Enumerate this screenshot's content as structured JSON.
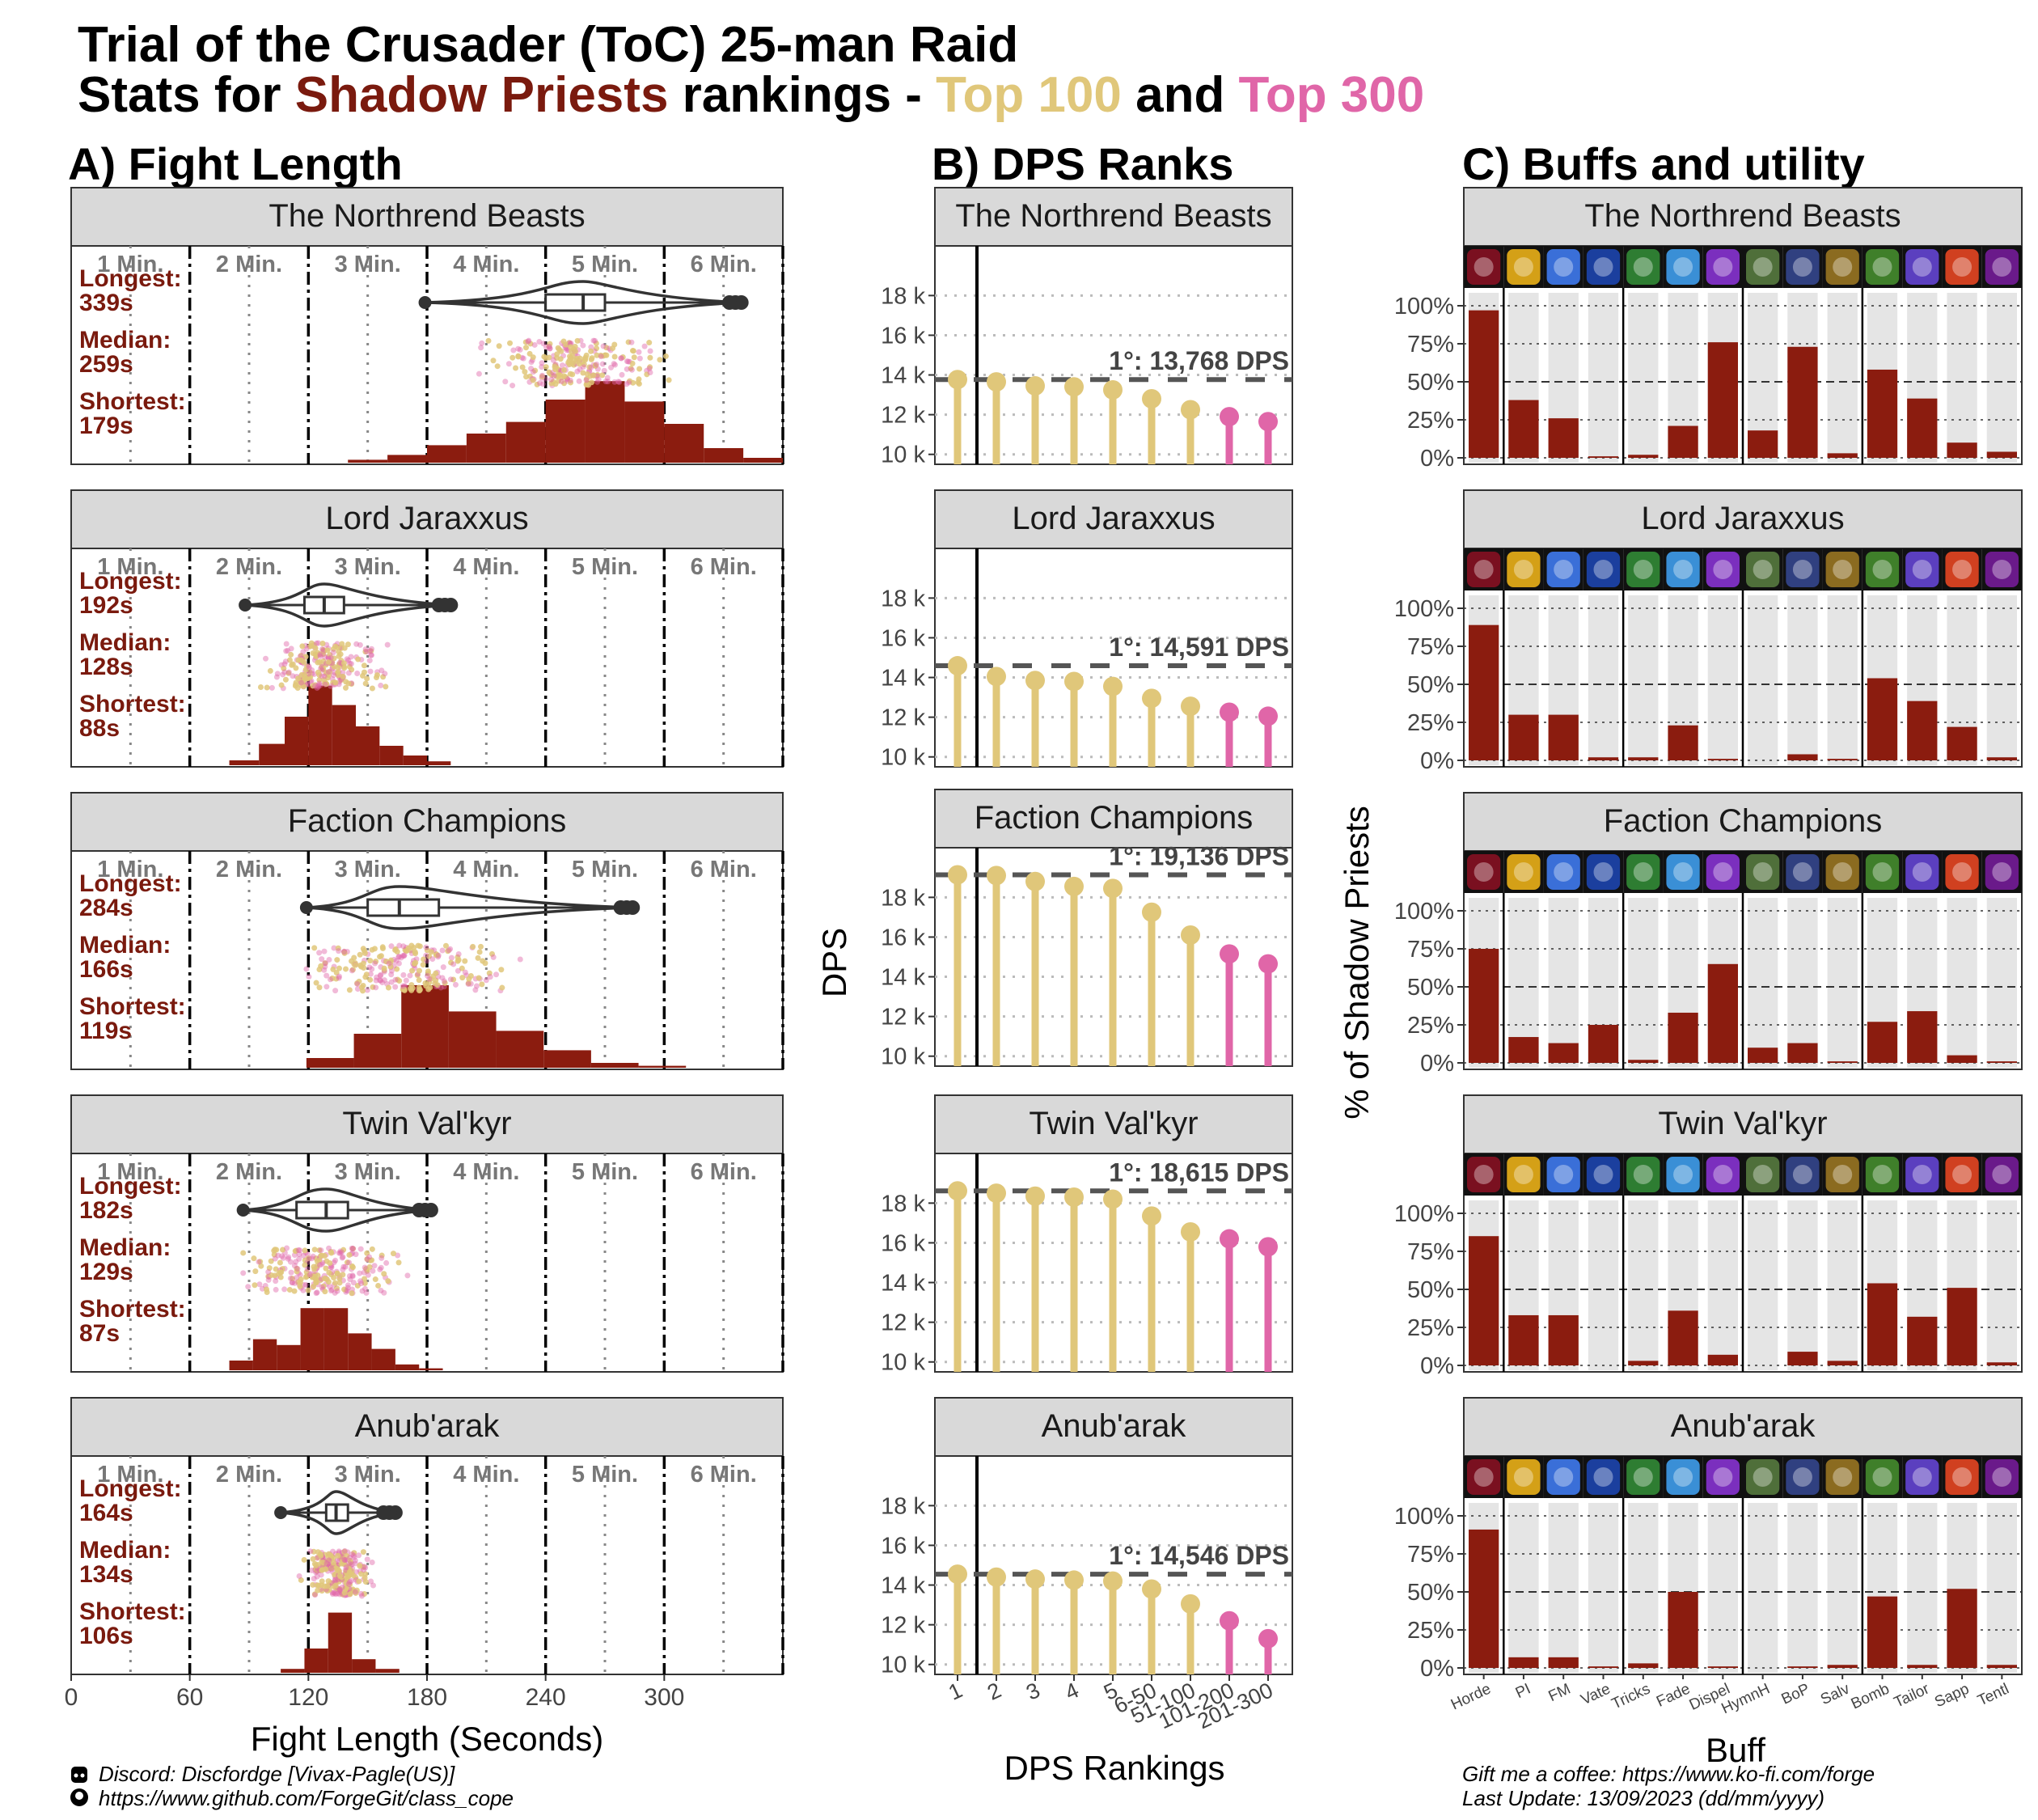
{
  "header": {
    "title": "Trial of the Crusader (ToC) 25-man Raid",
    "subtitle": {
      "part1": "Stats for ",
      "class": "Shadow Priests",
      "part2": " rankings - ",
      "top100": "Top 100",
      "and": " and ",
      "top300": "Top 300"
    }
  },
  "colors": {
    "dark_red": "#7a1a0e",
    "bar_red": "#8b1c0f",
    "top100": "#e0c77a",
    "top300": "#e066a8",
    "strip_bg": "#d9d9d9",
    "panel_bg_bar": "#e5e5e5"
  },
  "panel_titles": {
    "a": "A) Fight Length",
    "b": "B) DPS Ranks",
    "c": "C) Buffs and utility"
  },
  "fight_axis": {
    "minute_labels": [
      "1 Min.",
      "2 Min.",
      "3 Min.",
      "4 Min.",
      "5 Min.",
      "6 Min."
    ],
    "ticks": [
      "0",
      "60",
      "120",
      "180",
      "240",
      "300"
    ],
    "xlabel": "Fight Length (Seconds)",
    "longest_label": "Longest:",
    "median_label": "Median:",
    "shortest_label": "Shortest:"
  },
  "dps_axis": {
    "ylabel": "DPS",
    "xlabel": "DPS Rankings",
    "y_ticks": [
      "10 k",
      "12 k",
      "14 k",
      "16 k",
      "18 k"
    ],
    "rank_labels": [
      "1",
      "2",
      "3",
      "4",
      "5",
      "6-50",
      "51-100",
      "101-200",
      "201-300"
    ]
  },
  "buff_axis": {
    "ylabel": "% of Shadow Priests",
    "xlabel": "Buff",
    "y_ticks": [
      "0%",
      "25%",
      "50%",
      "75%",
      "100%"
    ],
    "buffs": [
      "Horde",
      "PI",
      "FM",
      "Vate",
      "Tricks",
      "Fade",
      "Dispel",
      "HymnH",
      "BoP",
      "Salv",
      "Bomb",
      "Tailor",
      "Sapp",
      "Tentl"
    ]
  },
  "footer": {
    "discord": "Discord: Discfordge [Vivax-Pagle(US)]",
    "github": "https://www.github.com/ForgeGit/class_cope",
    "coffee": "Gift me a coffee: https://www.ko-fi.com/forge",
    "update": "Last Update: 13/09/2023 (dd/mm/yyyy)"
  },
  "chart_data": [
    {
      "type": "box",
      "panel": "Fight Length",
      "unit": "seconds",
      "xlim": [
        0,
        360
      ],
      "bosses": [
        {
          "name": "The Northrend Beasts",
          "longest": "339s",
          "median": "259s",
          "shortest": "179s",
          "box": [
            179,
            240,
            259,
            270,
            339
          ],
          "hist": [
            {
              "x0": 140,
              "x1": 160,
              "h": 0.03
            },
            {
              "x0": 160,
              "x1": 180,
              "h": 0.08
            },
            {
              "x0": 180,
              "x1": 200,
              "h": 0.18
            },
            {
              "x0": 200,
              "x1": 220,
              "h": 0.3
            },
            {
              "x0": 220,
              "x1": 240,
              "h": 0.42
            },
            {
              "x0": 240,
              "x1": 260,
              "h": 0.65
            },
            {
              "x0": 260,
              "x1": 280,
              "h": 0.84
            },
            {
              "x0": 280,
              "x1": 300,
              "h": 0.63
            },
            {
              "x0": 300,
              "x1": 320,
              "h": 0.4
            },
            {
              "x0": 320,
              "x1": 340,
              "h": 0.15
            },
            {
              "x0": 340,
              "x1": 360,
              "h": 0.05
            }
          ]
        },
        {
          "name": "Lord Jaraxxus",
          "longest": "192s",
          "median": "128s",
          "shortest": "88s",
          "box": [
            88,
            118,
            128,
            138,
            192
          ],
          "hist": [
            {
              "x0": 80,
              "x1": 95,
              "h": 0.05
            },
            {
              "x0": 95,
              "x1": 108,
              "h": 0.22
            },
            {
              "x0": 108,
              "x1": 120,
              "h": 0.5
            },
            {
              "x0": 120,
              "x1": 132,
              "h": 0.82
            },
            {
              "x0": 132,
              "x1": 144,
              "h": 0.62
            },
            {
              "x0": 144,
              "x1": 156,
              "h": 0.4
            },
            {
              "x0": 156,
              "x1": 168,
              "h": 0.2
            },
            {
              "x0": 168,
              "x1": 180,
              "h": 0.1
            },
            {
              "x0": 180,
              "x1": 192,
              "h": 0.04
            }
          ]
        },
        {
          "name": "Faction Champions",
          "longest": "284s",
          "median": "166s",
          "shortest": "119s",
          "box": [
            119,
            150,
            166,
            186,
            284
          ],
          "hist": [
            {
              "x0": 119,
              "x1": 143,
              "h": 0.1
            },
            {
              "x0": 143,
              "x1": 167,
              "h": 0.35
            },
            {
              "x0": 167,
              "x1": 191,
              "h": 0.85
            },
            {
              "x0": 191,
              "x1": 215,
              "h": 0.58
            },
            {
              "x0": 215,
              "x1": 239,
              "h": 0.38
            },
            {
              "x0": 239,
              "x1": 263,
              "h": 0.18
            },
            {
              "x0": 263,
              "x1": 287,
              "h": 0.05
            },
            {
              "x0": 287,
              "x1": 311,
              "h": 0.02
            }
          ]
        },
        {
          "name": "Twin Val'kyr",
          "longest": "182s",
          "median": "129s",
          "shortest": "87s",
          "box": [
            87,
            114,
            129,
            140,
            182
          ],
          "hist": [
            {
              "x0": 80,
              "x1": 92,
              "h": 0.1
            },
            {
              "x0": 92,
              "x1": 104,
              "h": 0.32
            },
            {
              "x0": 104,
              "x1": 116,
              "h": 0.26
            },
            {
              "x0": 116,
              "x1": 128,
              "h": 0.64
            },
            {
              "x0": 128,
              "x1": 140,
              "h": 0.64
            },
            {
              "x0": 140,
              "x1": 152,
              "h": 0.38
            },
            {
              "x0": 152,
              "x1": 164,
              "h": 0.22
            },
            {
              "x0": 164,
              "x1": 176,
              "h": 0.06
            },
            {
              "x0": 176,
              "x1": 188,
              "h": 0.02
            }
          ]
        },
        {
          "name": "Anub'arak",
          "longest": "164s",
          "median": "134s",
          "shortest": "106s",
          "box": [
            106,
            129,
            134,
            140,
            164
          ],
          "hist": [
            {
              "x0": 106,
              "x1": 118,
              "h": 0.04
            },
            {
              "x0": 118,
              "x1": 130,
              "h": 0.25
            },
            {
              "x0": 130,
              "x1": 142,
              "h": 0.62
            },
            {
              "x0": 142,
              "x1": 154,
              "h": 0.14
            },
            {
              "x0": 154,
              "x1": 166,
              "h": 0.04
            }
          ]
        }
      ]
    },
    {
      "type": "lollipop",
      "panel": "DPS Ranks",
      "ylim": [
        9500,
        20500
      ],
      "categories": [
        "1",
        "2",
        "3",
        "4",
        "5",
        "6-50",
        "51-100",
        "101-200",
        "201-300"
      ],
      "series": [
        {
          "boss": "The Northrend Beasts",
          "top_label": "1°: 13,768 DPS",
          "top": 13768,
          "values": [
            13768,
            13650,
            13450,
            13400,
            13250,
            12800,
            12250,
            11900,
            11650
          ]
        },
        {
          "boss": "Lord Jaraxxus",
          "top_label": "1°: 14,591 DPS",
          "top": 14591,
          "values": [
            14591,
            14050,
            13850,
            13800,
            13550,
            12950,
            12550,
            12250,
            12050
          ]
        },
        {
          "boss": "Faction Champions",
          "top_label": "1°: 19,136 DPS",
          "top": 19136,
          "values": [
            19136,
            19100,
            18800,
            18550,
            18450,
            17250,
            16100,
            15150,
            14650
          ]
        },
        {
          "boss": "Twin Val'kyr",
          "top_label": "1°: 18,615 DPS",
          "top": 18615,
          "values": [
            18615,
            18500,
            18350,
            18300,
            18200,
            17350,
            16550,
            16200,
            15800
          ]
        },
        {
          "boss": "Anub'arak",
          "top_label": "1°: 14,546 DPS",
          "top": 14546,
          "values": [
            14546,
            14400,
            14300,
            14250,
            14200,
            13800,
            13050,
            12200,
            11300
          ]
        }
      ]
    },
    {
      "type": "bar",
      "panel": "Buffs and utility",
      "ylim": [
        0,
        100
      ],
      "categories": [
        "Horde",
        "PI",
        "FM",
        "Vate",
        "Tricks",
        "Fade",
        "Dispel",
        "HymnH",
        "BoP",
        "Salv",
        "Bomb",
        "Tailor",
        "Sapp",
        "Tentl"
      ],
      "series": [
        {
          "boss": "The Northrend Beasts",
          "values": [
            97,
            38,
            26,
            1,
            2,
            21,
            76,
            18,
            73,
            3,
            58,
            39,
            10,
            4
          ]
        },
        {
          "boss": "Lord Jaraxxus",
          "values": [
            89,
            30,
            30,
            2,
            2,
            23,
            1,
            0,
            4,
            1,
            54,
            39,
            22,
            2
          ]
        },
        {
          "boss": "Faction Champions",
          "values": [
            75,
            17,
            13,
            25,
            2,
            33,
            65,
            10,
            13,
            1,
            27,
            34,
            5,
            1
          ]
        },
        {
          "boss": "Twin Val'kyr",
          "values": [
            85,
            33,
            33,
            0,
            3,
            36,
            7,
            0,
            9,
            3,
            54,
            32,
            51,
            2
          ]
        },
        {
          "boss": "Anub'arak",
          "values": [
            91,
            7,
            7,
            1,
            3,
            50,
            1,
            0,
            1,
            2,
            47,
            2,
            52,
            2
          ]
        }
      ]
    }
  ]
}
